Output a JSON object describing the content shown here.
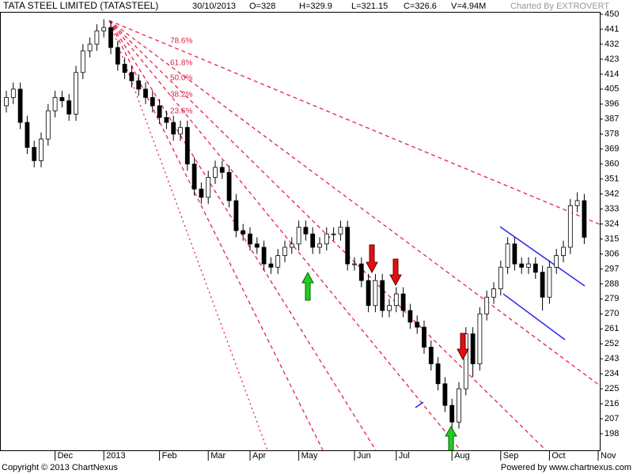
{
  "chart_data": {
    "type": "candlestick",
    "title": "TATA STEEL LIMITED (TATASTEEL)",
    "info": [
      "30/10/2013",
      "O=328",
      "H=329.9",
      "L=321.15",
      "C=326.6",
      "V=4.94M"
    ],
    "credit": "Charted By EXTROVERT",
    "footer_left": "Copyright © 2013 ChartNexus",
    "footer_right": "Powered by www.chartnexus.com",
    "fib_labels": [
      "78.6%",
      "61.8%",
      "50.0%",
      "38.2%",
      "23.6%"
    ],
    "categories": [
      null,
      null,
      null,
      null,
      null,
      null,
      null,
      "Dec",
      null,
      null,
      null,
      null,
      null,
      null,
      "2013",
      null,
      null,
      null,
      null,
      null,
      null,
      null,
      "Feb",
      null,
      null,
      null,
      null,
      null,
      null,
      "Mar",
      null,
      null,
      null,
      null,
      null,
      "Apr",
      null,
      null,
      null,
      null,
      null,
      null,
      "May",
      null,
      null,
      null,
      null,
      null,
      null,
      null,
      "Jun",
      null,
      null,
      null,
      null,
      null,
      "Jul",
      null,
      null,
      null,
      null,
      null,
      null,
      null,
      "Aug",
      null,
      null,
      null,
      null,
      null,
      null,
      "Sep",
      null,
      null,
      null,
      null,
      null,
      null,
      "Oct",
      null,
      null,
      null,
      null,
      null,
      null,
      "Nov"
    ],
    "ohlc": {
      "open": [
        395,
        400,
        405,
        385,
        370,
        362,
        375,
        392,
        400,
        398,
        390,
        415,
        428,
        432,
        440,
        442,
        430,
        420,
        415,
        410,
        405,
        400,
        395,
        388,
        385,
        378,
        382,
        360,
        345,
        340,
        352,
        358,
        355,
        338,
        320,
        318,
        312,
        310,
        300,
        298,
        305,
        310,
        312,
        322,
        318,
        310,
        312,
        318,
        318,
        322,
        300,
        300,
        290,
        275,
        290,
        272,
        275,
        282,
        272,
        265,
        262,
        250,
        240,
        228,
        215,
        205,
        225,
        258,
        240,
        270,
        280,
        285,
        298,
        312,
        300,
        298,
        300,
        295,
        280,
        298,
        305,
        310,
        335,
        338,
        null,
        null
      ],
      "high": [
        404,
        409,
        409,
        389,
        374,
        379,
        396,
        404,
        404,
        402,
        419,
        432,
        436,
        444,
        447,
        446,
        434,
        424,
        419,
        414,
        409,
        404,
        399,
        392,
        389,
        386,
        386,
        364,
        349,
        356,
        362,
        362,
        359,
        342,
        324,
        322,
        316,
        314,
        304,
        309,
        314,
        316,
        326,
        326,
        322,
        316,
        322,
        322,
        326,
        326,
        304,
        304,
        294,
        294,
        294,
        279,
        286,
        286,
        276,
        269,
        266,
        254,
        244,
        232,
        219,
        229,
        262,
        262,
        274,
        284,
        289,
        302,
        316,
        316,
        304,
        304,
        304,
        299,
        302,
        309,
        314,
        339,
        343,
        342,
        null,
        null
      ],
      "low": [
        391,
        396,
        381,
        366,
        358,
        358,
        371,
        388,
        394,
        386,
        386,
        411,
        424,
        428,
        436,
        426,
        416,
        411,
        406,
        401,
        396,
        391,
        384,
        381,
        374,
        374,
        356,
        341,
        336,
        336,
        348,
        351,
        334,
        316,
        314,
        308,
        306,
        296,
        294,
        294,
        301,
        306,
        308,
        314,
        306,
        306,
        308,
        314,
        314,
        296,
        296,
        286,
        271,
        271,
        268,
        268,
        271,
        268,
        261,
        258,
        246,
        236,
        224,
        211,
        199,
        201,
        221,
        232,
        236,
        266,
        276,
        281,
        294,
        296,
        294,
        294,
        291,
        272,
        276,
        294,
        301,
        306,
        331,
        312,
        null,
        null
      ],
      "close": [
        400,
        405,
        385,
        370,
        362,
        375,
        392,
        400,
        398,
        390,
        415,
        428,
        432,
        440,
        442,
        430,
        420,
        415,
        410,
        405,
        400,
        395,
        388,
        385,
        378,
        382,
        360,
        345,
        340,
        352,
        358,
        355,
        338,
        320,
        318,
        312,
        310,
        300,
        298,
        305,
        310,
        312,
        322,
        318,
        310,
        312,
        318,
        318,
        322,
        300,
        300,
        290,
        275,
        290,
        272,
        275,
        282,
        272,
        265,
        262,
        250,
        240,
        228,
        215,
        205,
        225,
        258,
        240,
        270,
        280,
        285,
        298,
        312,
        300,
        298,
        300,
        295,
        280,
        298,
        305,
        310,
        335,
        338,
        316,
        null,
        null
      ]
    },
    "up_color": "#ffffff",
    "down_color": "#000000",
    "ylim": [
      198,
      450
    ],
    "yticks": [
      450,
      441,
      432,
      423,
      414,
      405,
      396,
      387,
      378,
      369,
      360,
      351,
      342,
      333,
      324,
      315,
      306,
      297,
      288,
      279,
      270,
      261,
      252,
      243,
      234,
      225,
      216,
      207,
      198
    ],
    "grid": false
  }
}
